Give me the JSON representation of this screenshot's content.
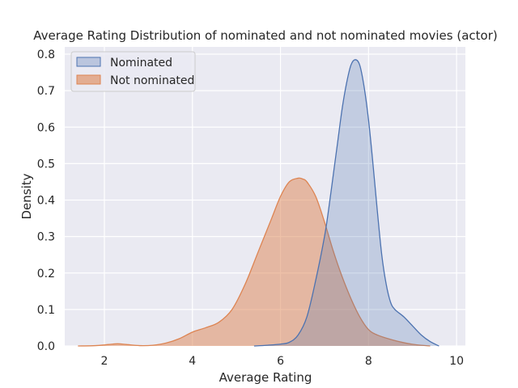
{
  "chart_data": {
    "type": "area",
    "title": "Average Rating Distribution of nominated and not nominated movies (actor)",
    "xlabel": "Average Rating",
    "ylabel": "Density",
    "xlim": [
      1.1,
      10.2
    ],
    "ylim": [
      0,
      0.82
    ],
    "xticks": [
      2,
      4,
      6,
      8,
      10
    ],
    "xtick_labels": [
      "2",
      "4",
      "6",
      "8",
      "10"
    ],
    "yticks": [
      0,
      0.1,
      0.2,
      0.3,
      0.4,
      0.5,
      0.6,
      0.7,
      0.8
    ],
    "ytick_labels": [
      "0.0",
      "0.1",
      "0.2",
      "0.3",
      "0.4",
      "0.5",
      "0.6",
      "0.7",
      "0.8"
    ],
    "grid": true,
    "legend_position": "top-left",
    "series": [
      {
        "name": "Nominated",
        "fill": "#4c72b0",
        "stroke": "#4c72b0",
        "x": [
          5.4,
          5.7,
          6.0,
          6.2,
          6.4,
          6.6,
          6.8,
          7.0,
          7.1,
          7.2,
          7.3,
          7.4,
          7.5,
          7.6,
          7.7,
          7.8,
          7.9,
          8.0,
          8.1,
          8.2,
          8.3,
          8.4,
          8.5,
          8.6,
          8.8,
          9.0,
          9.2,
          9.4,
          9.6
        ],
        "y": [
          0.0,
          0.002,
          0.005,
          0.01,
          0.03,
          0.08,
          0.18,
          0.3,
          0.38,
          0.47,
          0.56,
          0.65,
          0.72,
          0.77,
          0.785,
          0.77,
          0.71,
          0.62,
          0.5,
          0.37,
          0.25,
          0.17,
          0.12,
          0.1,
          0.08,
          0.055,
          0.03,
          0.012,
          0.0
        ]
      },
      {
        "name": "Not nominated",
        "fill": "#dd8452",
        "stroke": "#dd8452",
        "x": [
          1.4,
          1.8,
          2.1,
          2.3,
          2.5,
          2.8,
          3.1,
          3.4,
          3.7,
          4.0,
          4.3,
          4.6,
          4.9,
          5.2,
          5.5,
          5.8,
          6.0,
          6.2,
          6.4,
          6.5,
          6.6,
          6.8,
          7.0,
          7.2,
          7.4,
          7.6,
          7.8,
          8.0,
          8.2,
          8.5,
          8.8,
          9.1,
          9.4
        ],
        "y": [
          0.0,
          0.001,
          0.004,
          0.006,
          0.004,
          0.001,
          0.002,
          0.008,
          0.02,
          0.038,
          0.05,
          0.065,
          0.1,
          0.17,
          0.26,
          0.35,
          0.41,
          0.45,
          0.46,
          0.458,
          0.45,
          0.41,
          0.34,
          0.26,
          0.19,
          0.13,
          0.08,
          0.045,
          0.03,
          0.018,
          0.009,
          0.003,
          0.0
        ]
      }
    ]
  }
}
